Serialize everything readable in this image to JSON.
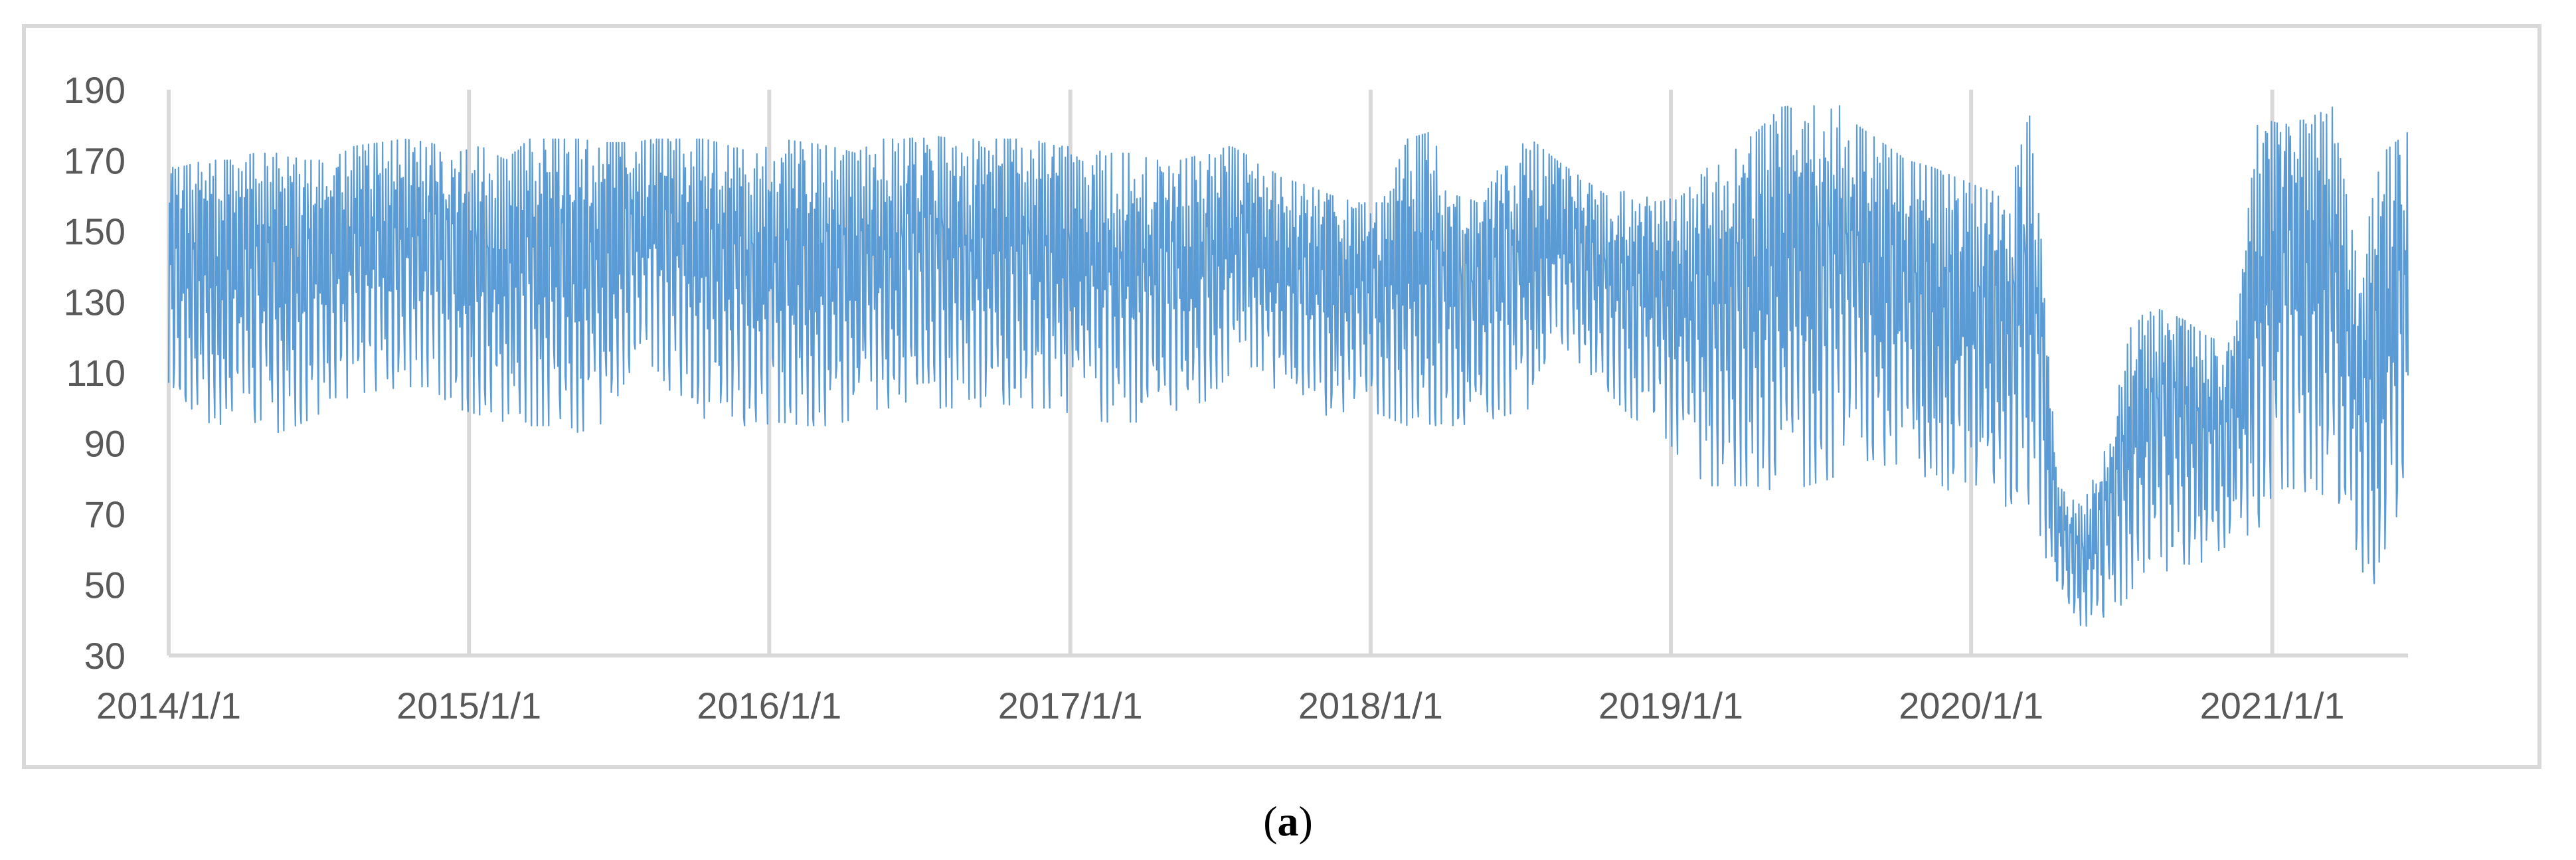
{
  "panel_label": {
    "open": "(",
    "letter": "a",
    "close": ")"
  },
  "colors": {
    "series": "#5b9bd5",
    "grid": "#d9d9d9",
    "tick_text": "#595959",
    "frame": "#d9d9d9"
  },
  "chart_data": {
    "type": "line",
    "title": "",
    "xlabel": "",
    "ylabel": "",
    "ylim": [
      30,
      190
    ],
    "y_ticks": [
      30,
      50,
      70,
      90,
      110,
      130,
      150,
      170,
      190
    ],
    "x_ticks": [
      "2014/1/1",
      "2015/1/1",
      "2016/1/1",
      "2017/1/1",
      "2018/1/1",
      "2019/1/1",
      "2020/1/1",
      "2021/1/1"
    ],
    "xlim": [
      "2014/1/1",
      "2021/6/15"
    ],
    "grid": {
      "vertical": true,
      "horizontal": false
    },
    "legend": "none",
    "series": [
      {
        "frequency": "daily, strong weekly cycle (approximate monthly envelope)",
        "x": [
          "2014-01",
          "2014-02",
          "2014-03",
          "2014-04",
          "2014-05",
          "2014-06",
          "2014-07",
          "2014-08",
          "2014-09",
          "2014-10",
          "2014-11",
          "2014-12",
          "2015-01",
          "2015-02",
          "2015-03",
          "2015-04",
          "2015-05",
          "2015-06",
          "2015-07",
          "2015-08",
          "2015-09",
          "2015-10",
          "2015-11",
          "2015-12",
          "2016-01",
          "2016-02",
          "2016-03",
          "2016-04",
          "2016-05",
          "2016-06",
          "2016-07",
          "2016-08",
          "2016-09",
          "2016-10",
          "2016-11",
          "2016-12",
          "2017-01",
          "2017-02",
          "2017-03",
          "2017-04",
          "2017-05",
          "2017-06",
          "2017-07",
          "2017-08",
          "2017-09",
          "2017-10",
          "2017-11",
          "2017-12",
          "2018-01",
          "2018-02",
          "2018-03",
          "2018-04",
          "2018-05",
          "2018-06",
          "2018-07",
          "2018-08",
          "2018-09",
          "2018-10",
          "2018-11",
          "2018-12",
          "2019-01",
          "2019-02",
          "2019-03",
          "2019-04",
          "2019-05",
          "2019-06",
          "2019-07",
          "2019-08",
          "2019-09",
          "2019-10",
          "2019-11",
          "2019-12",
          "2020-01",
          "2020-02",
          "2020-03",
          "2020-04",
          "2020-05",
          "2020-06",
          "2020-07",
          "2020-08",
          "2020-09",
          "2020-10",
          "2020-11",
          "2020-12",
          "2021-01",
          "2021-02",
          "2021-03",
          "2021-04",
          "2021-05",
          "2021-06"
        ],
        "low": [
          100,
          96,
          95,
          96,
          93,
          96,
          100,
          104,
          105,
          106,
          106,
          100,
          98,
          96,
          95,
          95,
          93,
          96,
          110,
          112,
          100,
          97,
          95,
          95,
          96,
          95,
          95,
          97,
          100,
          100,
          100,
          100,
          99,
          101,
          100,
          100,
          97,
          96,
          96,
          96,
          100,
          102,
          110,
          112,
          103,
          98,
          98,
          100,
          98,
          95,
          95,
          95,
          96,
          98,
          100,
          120,
          112,
          105,
          97,
          95,
          85,
          78,
          78,
          78,
          76,
          78,
          80,
          86,
          84,
          82,
          80,
          75,
          74,
          72,
          73,
          45,
          38,
          40,
          48,
          55,
          52,
          58,
          62,
          65,
          78,
          76,
          75,
          55,
          48,
          80
        ],
        "high": [
          168,
          170,
          170,
          172,
          172,
          170,
          170,
          174,
          175,
          176,
          175,
          172,
          174,
          170,
          176,
          176,
          176,
          175,
          175,
          176,
          176,
          176,
          174,
          172,
          176,
          175,
          174,
          172,
          176,
          176,
          177,
          176,
          176,
          176,
          176,
          174,
          174,
          172,
          172,
          170,
          170,
          172,
          174,
          170,
          165,
          163,
          160,
          158,
          158,
          176,
          178,
          160,
          158,
          172,
          176,
          170,
          165,
          160,
          162,
          158,
          160,
          168,
          172,
          178,
          185,
          186,
          188,
          180,
          175,
          170,
          168,
          165,
          162,
          160,
          186,
          78,
          72,
          90,
          125,
          128,
          125,
          120,
          118,
          182,
          180,
          182,
          185,
          140,
          172,
          178
        ]
      }
    ]
  }
}
